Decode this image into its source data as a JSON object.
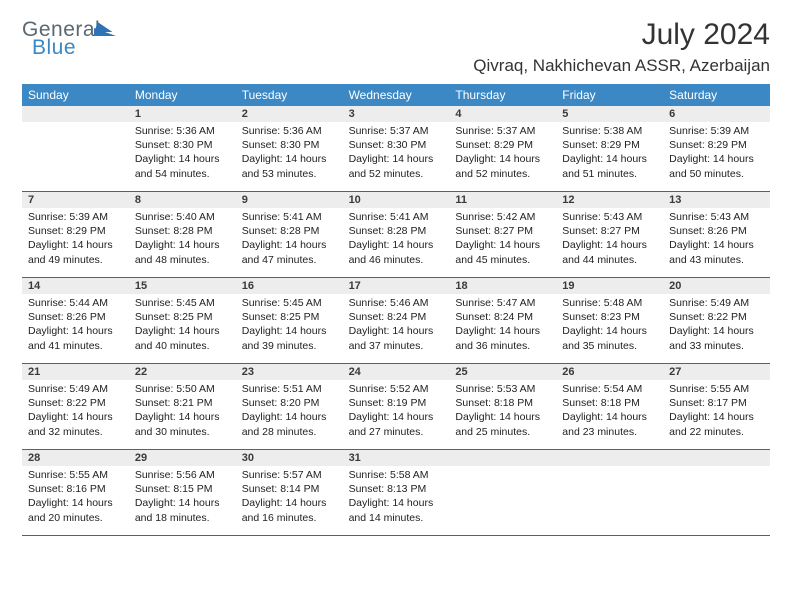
{
  "logo": {
    "line1": "General",
    "line2": "Blue"
  },
  "title": "July 2024",
  "location": "Qivraq, Nakhichevan ASSR, Azerbaijan",
  "colors": {
    "header_bg": "#3b88c4",
    "header_text": "#ffffff",
    "daynum_bg": "#ededed",
    "border": "#2d6da3",
    "page_bg": "#ffffff",
    "text": "#222222",
    "logo_gray": "#5a6872",
    "logo_blue": "#3b88c4"
  },
  "weekdays": [
    "Sunday",
    "Monday",
    "Tuesday",
    "Wednesday",
    "Thursday",
    "Friday",
    "Saturday"
  ],
  "leading_blanks": 1,
  "days": [
    {
      "n": 1,
      "sunrise": "5:36 AM",
      "sunset": "8:30 PM",
      "daylight": "14 hours and 54 minutes."
    },
    {
      "n": 2,
      "sunrise": "5:36 AM",
      "sunset": "8:30 PM",
      "daylight": "14 hours and 53 minutes."
    },
    {
      "n": 3,
      "sunrise": "5:37 AM",
      "sunset": "8:30 PM",
      "daylight": "14 hours and 52 minutes."
    },
    {
      "n": 4,
      "sunrise": "5:37 AM",
      "sunset": "8:29 PM",
      "daylight": "14 hours and 52 minutes."
    },
    {
      "n": 5,
      "sunrise": "5:38 AM",
      "sunset": "8:29 PM",
      "daylight": "14 hours and 51 minutes."
    },
    {
      "n": 6,
      "sunrise": "5:39 AM",
      "sunset": "8:29 PM",
      "daylight": "14 hours and 50 minutes."
    },
    {
      "n": 7,
      "sunrise": "5:39 AM",
      "sunset": "8:29 PM",
      "daylight": "14 hours and 49 minutes."
    },
    {
      "n": 8,
      "sunrise": "5:40 AM",
      "sunset": "8:28 PM",
      "daylight": "14 hours and 48 minutes."
    },
    {
      "n": 9,
      "sunrise": "5:41 AM",
      "sunset": "8:28 PM",
      "daylight": "14 hours and 47 minutes."
    },
    {
      "n": 10,
      "sunrise": "5:41 AM",
      "sunset": "8:28 PM",
      "daylight": "14 hours and 46 minutes."
    },
    {
      "n": 11,
      "sunrise": "5:42 AM",
      "sunset": "8:27 PM",
      "daylight": "14 hours and 45 minutes."
    },
    {
      "n": 12,
      "sunrise": "5:43 AM",
      "sunset": "8:27 PM",
      "daylight": "14 hours and 44 minutes."
    },
    {
      "n": 13,
      "sunrise": "5:43 AM",
      "sunset": "8:26 PM",
      "daylight": "14 hours and 43 minutes."
    },
    {
      "n": 14,
      "sunrise": "5:44 AM",
      "sunset": "8:26 PM",
      "daylight": "14 hours and 41 minutes."
    },
    {
      "n": 15,
      "sunrise": "5:45 AM",
      "sunset": "8:25 PM",
      "daylight": "14 hours and 40 minutes."
    },
    {
      "n": 16,
      "sunrise": "5:45 AM",
      "sunset": "8:25 PM",
      "daylight": "14 hours and 39 minutes."
    },
    {
      "n": 17,
      "sunrise": "5:46 AM",
      "sunset": "8:24 PM",
      "daylight": "14 hours and 37 minutes."
    },
    {
      "n": 18,
      "sunrise": "5:47 AM",
      "sunset": "8:24 PM",
      "daylight": "14 hours and 36 minutes."
    },
    {
      "n": 19,
      "sunrise": "5:48 AM",
      "sunset": "8:23 PM",
      "daylight": "14 hours and 35 minutes."
    },
    {
      "n": 20,
      "sunrise": "5:49 AM",
      "sunset": "8:22 PM",
      "daylight": "14 hours and 33 minutes."
    },
    {
      "n": 21,
      "sunrise": "5:49 AM",
      "sunset": "8:22 PM",
      "daylight": "14 hours and 32 minutes."
    },
    {
      "n": 22,
      "sunrise": "5:50 AM",
      "sunset": "8:21 PM",
      "daylight": "14 hours and 30 minutes."
    },
    {
      "n": 23,
      "sunrise": "5:51 AM",
      "sunset": "8:20 PM",
      "daylight": "14 hours and 28 minutes."
    },
    {
      "n": 24,
      "sunrise": "5:52 AM",
      "sunset": "8:19 PM",
      "daylight": "14 hours and 27 minutes."
    },
    {
      "n": 25,
      "sunrise": "5:53 AM",
      "sunset": "8:18 PM",
      "daylight": "14 hours and 25 minutes."
    },
    {
      "n": 26,
      "sunrise": "5:54 AM",
      "sunset": "8:18 PM",
      "daylight": "14 hours and 23 minutes."
    },
    {
      "n": 27,
      "sunrise": "5:55 AM",
      "sunset": "8:17 PM",
      "daylight": "14 hours and 22 minutes."
    },
    {
      "n": 28,
      "sunrise": "5:55 AM",
      "sunset": "8:16 PM",
      "daylight": "14 hours and 20 minutes."
    },
    {
      "n": 29,
      "sunrise": "5:56 AM",
      "sunset": "8:15 PM",
      "daylight": "14 hours and 18 minutes."
    },
    {
      "n": 30,
      "sunrise": "5:57 AM",
      "sunset": "8:14 PM",
      "daylight": "14 hours and 16 minutes."
    },
    {
      "n": 31,
      "sunrise": "5:58 AM",
      "sunset": "8:13 PM",
      "daylight": "14 hours and 14 minutes."
    }
  ],
  "labels": {
    "sunrise": "Sunrise:",
    "sunset": "Sunset:",
    "daylight": "Daylight:"
  }
}
